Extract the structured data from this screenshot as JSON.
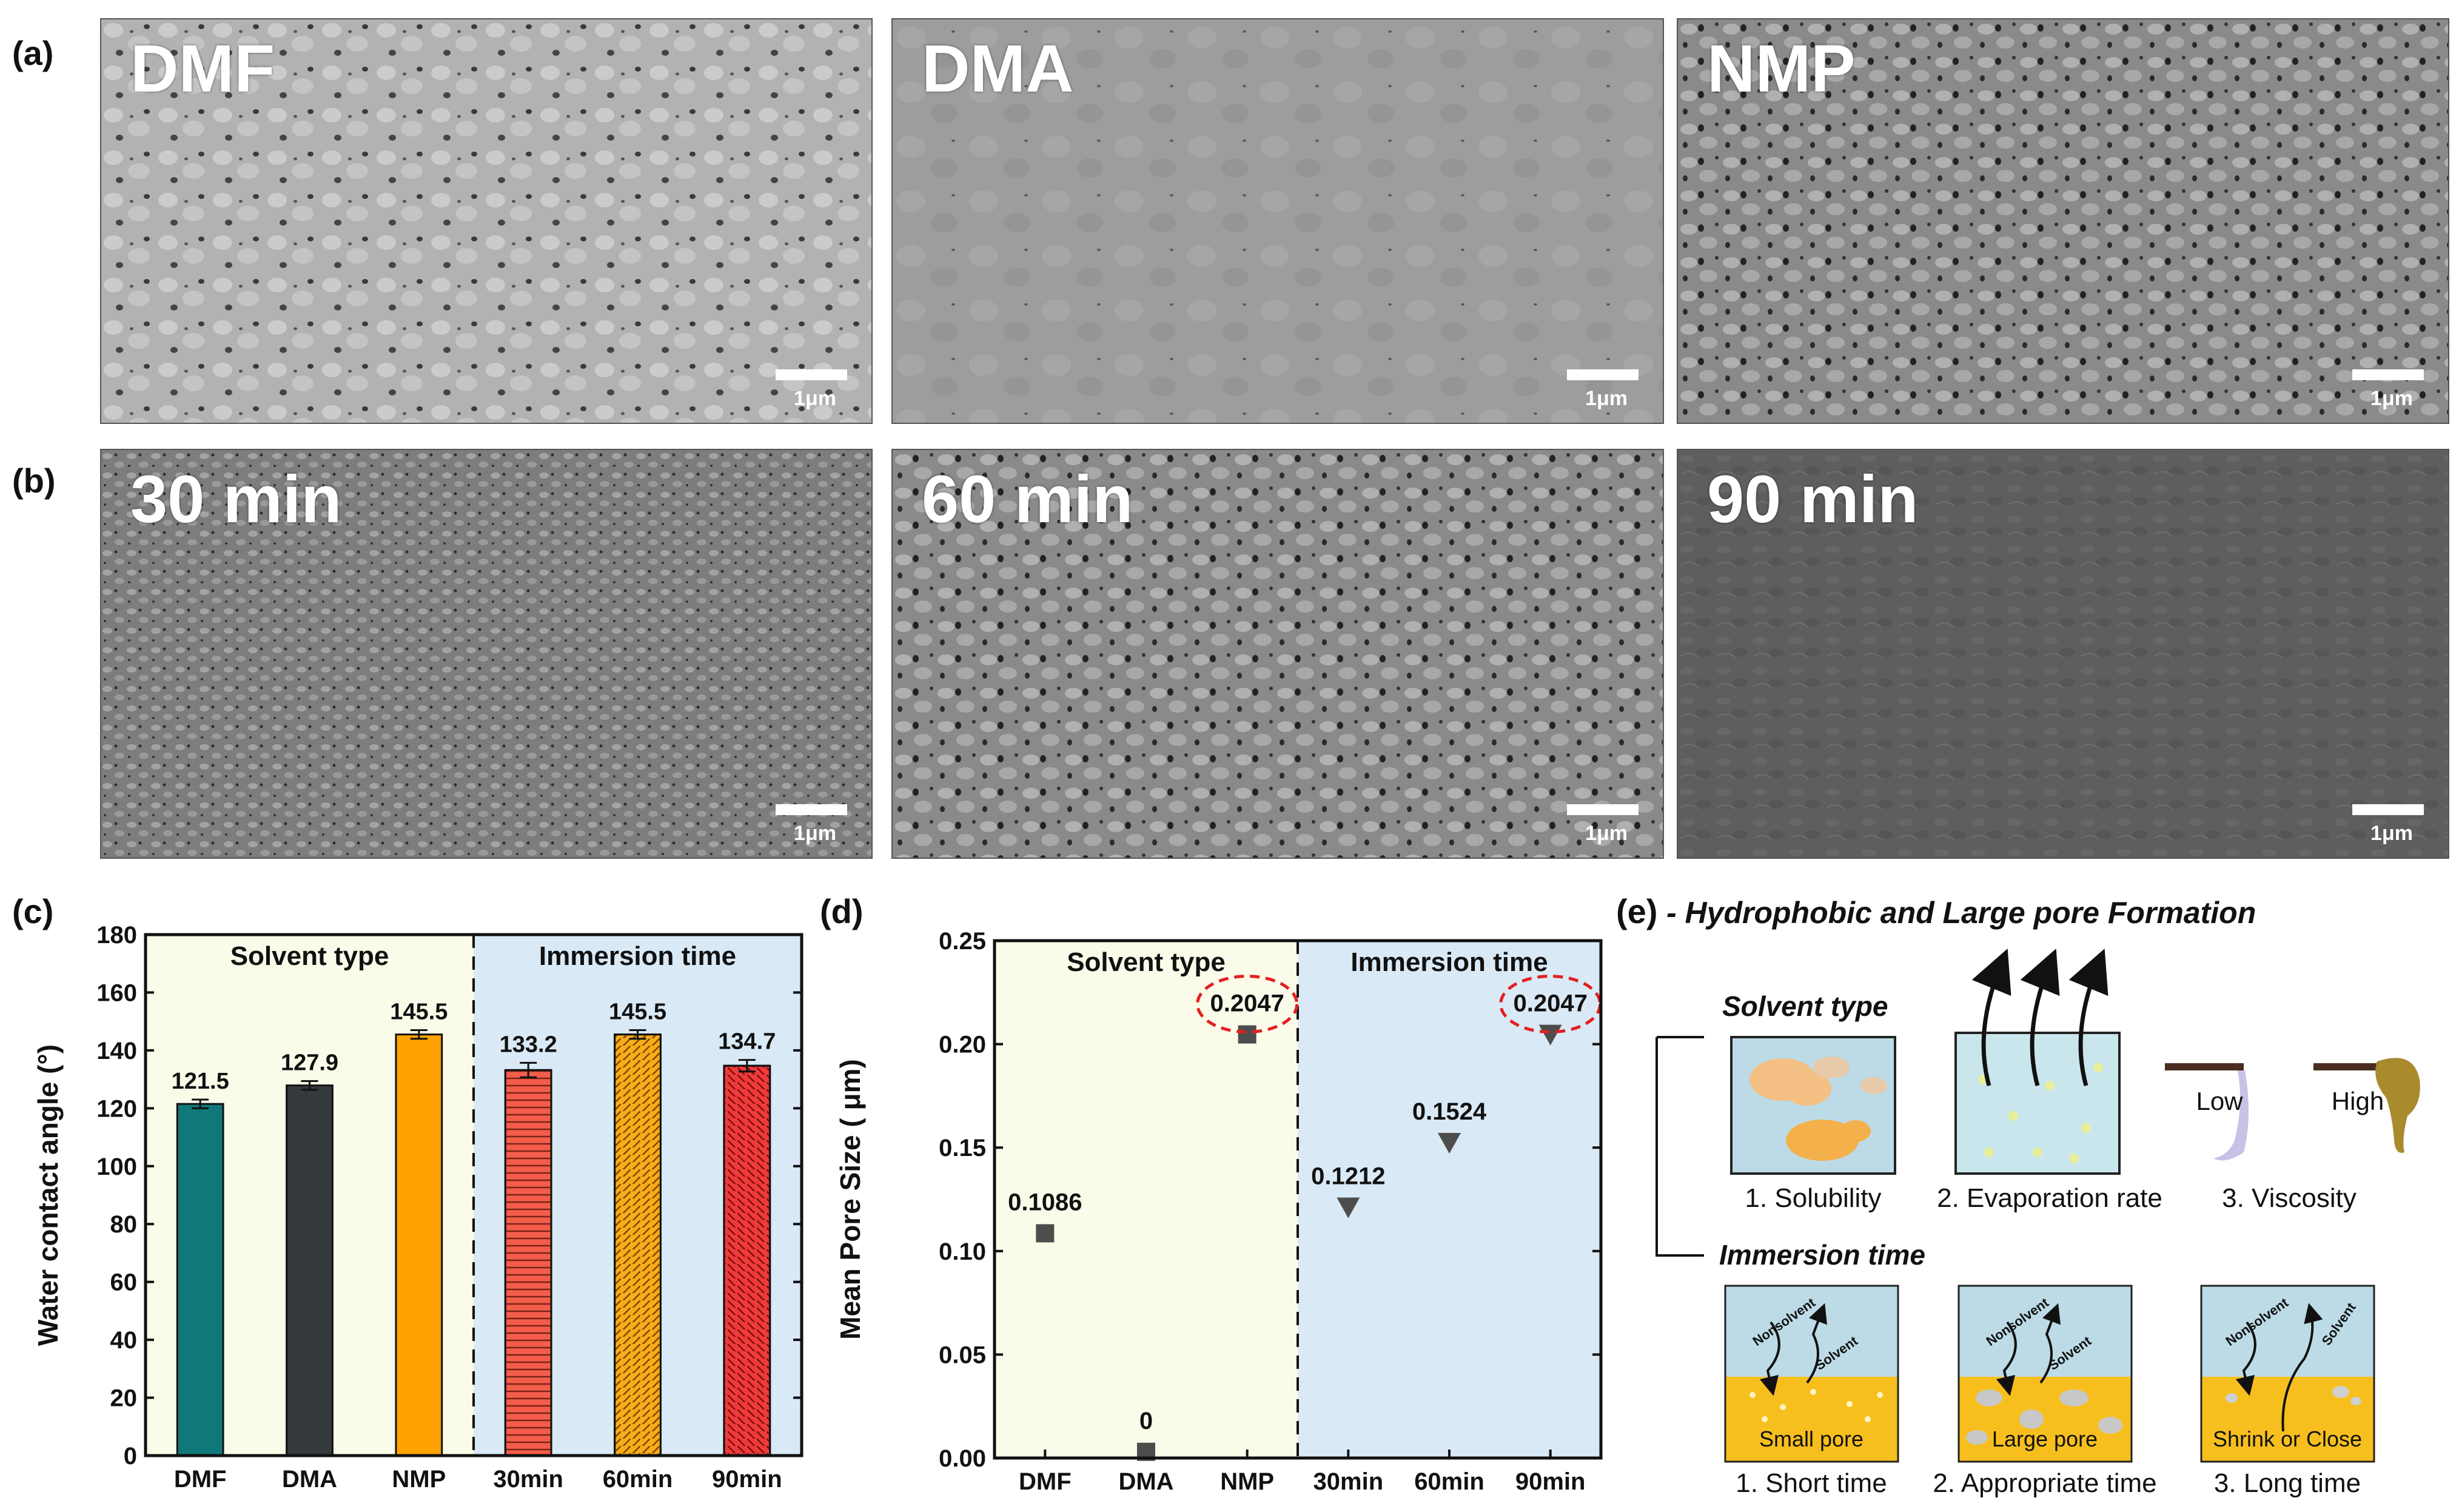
{
  "panels": {
    "a": "(a)",
    "b": "(b)",
    "c": "(c)",
    "d": "(d)",
    "e": "(e)"
  },
  "sem_images": {
    "row_a": [
      {
        "label": "DMF",
        "scale": "1μm"
      },
      {
        "label": "DMA",
        "scale": "1μm"
      },
      {
        "label": "NMP",
        "scale": "1μm"
      }
    ],
    "row_b": [
      {
        "label": "30 min",
        "scale": "1μm"
      },
      {
        "label": "60 min",
        "scale": "1μm"
      },
      {
        "label": "90 min",
        "scale": "1μm"
      }
    ]
  },
  "chart_data": [
    {
      "type": "bar",
      "ylabel": "Water contact angle (°)",
      "ylim": [
        0,
        180
      ],
      "yticks": [
        0,
        20,
        40,
        60,
        80,
        100,
        120,
        140,
        160,
        180
      ],
      "categories": [
        "DMF",
        "DMA",
        "NMP",
        "30min",
        "60min",
        "90min"
      ],
      "values": [
        121.5,
        127.9,
        145.5,
        133.2,
        145.5,
        134.7
      ],
      "value_labels": [
        "121.5",
        "127.9",
        "145.5",
        "133.2",
        "145.5",
        "134.7"
      ],
      "errors": [
        1.5,
        1.5,
        1.5,
        2.5,
        1.5,
        2.0
      ],
      "colors": [
        "#10787a",
        "#34393b",
        "#ffa200",
        "#f45d4a",
        "#f9ab1a",
        "#f03a3a"
      ],
      "groups": [
        {
          "name": "Solvent type",
          "bg": "#fbfbe9"
        },
        {
          "name": "Immersion time",
          "bg": "#d9e9f6"
        }
      ]
    },
    {
      "type": "scatter",
      "ylabel": "Mean Pore Size ( μm)",
      "ylim": [
        0,
        0.25
      ],
      "yticks": [
        "0.00",
        "0.05",
        "0.10",
        "0.15",
        "0.20",
        "0.25"
      ],
      "categories": [
        "DMF",
        "DMA",
        "NMP",
        "30min",
        "60min",
        "90min"
      ],
      "values": [
        0.1086,
        0.003,
        0.2047,
        0.1212,
        0.1524,
        0.2047
      ],
      "value_labels": [
        "0.1086",
        "0",
        "0.2047",
        "0.1212",
        "0.1524",
        "0.2047"
      ],
      "markers": [
        "square",
        "square",
        "square",
        "triangle-down",
        "triangle-down",
        "triangle-down"
      ],
      "highlighted": [
        2,
        5
      ],
      "groups": [
        {
          "name": "Solvent type",
          "bg": "#fbfbe9"
        },
        {
          "name": "Immersion time",
          "bg": "#d9e9f6"
        }
      ]
    }
  ],
  "schematic": {
    "title": "- Hydrophobic and Large pore Formation",
    "solvent_heading": "Solvent type",
    "immersion_heading": "Immersion time",
    "solvent_items": [
      "1. Solubility",
      "2. Evaporation rate",
      "3. Viscosity"
    ],
    "viscosity_low": "Low",
    "viscosity_high": "High",
    "immersion_items": [
      "1. Short time",
      "2. Appropriate time",
      "3. Long time"
    ],
    "box_labels": [
      "Small pore",
      "Large pore",
      "Shrink or Close"
    ],
    "nonsolvent": "Nonsolvent",
    "solvent": "Solvent"
  }
}
